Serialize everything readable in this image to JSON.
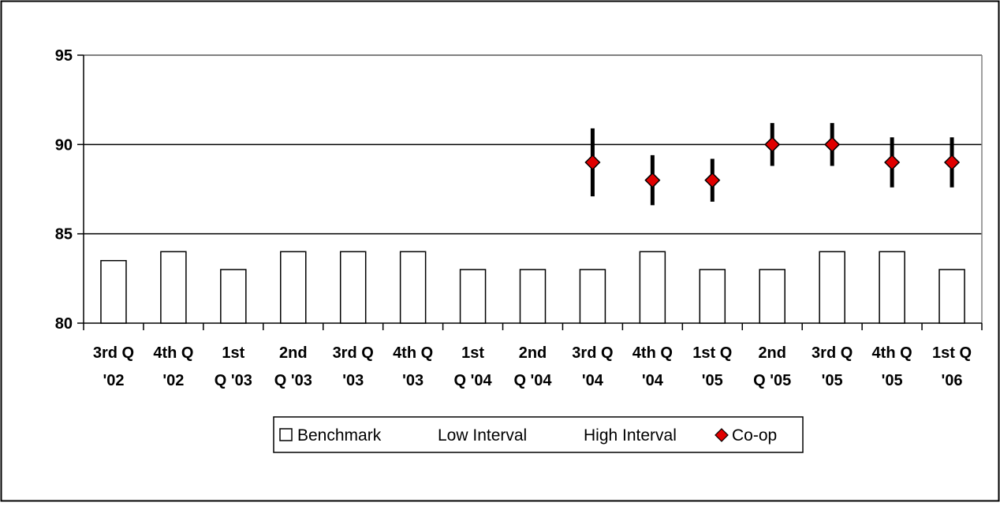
{
  "chart_data": {
    "type": "bar",
    "categories": [
      [
        "3rd Q",
        "'02"
      ],
      [
        "4th Q",
        "'02"
      ],
      [
        "1st",
        "Q '03"
      ],
      [
        "2nd",
        "Q '03"
      ],
      [
        "3rd Q",
        "'03"
      ],
      [
        "4th Q",
        "'03"
      ],
      [
        "1st",
        "Q '04"
      ],
      [
        "2nd",
        "Q '04"
      ],
      [
        "3rd Q",
        "'04"
      ],
      [
        "4th Q",
        "'04"
      ],
      [
        "1st Q",
        "'05"
      ],
      [
        "2nd",
        "Q '05"
      ],
      [
        "3rd Q",
        "'05"
      ],
      [
        "4th Q",
        "'05"
      ],
      [
        "1st Q",
        "'06"
      ]
    ],
    "series": [
      {
        "name": "Benchmark",
        "kind": "bar",
        "values": [
          83.5,
          84,
          83,
          84,
          84,
          84,
          83,
          83,
          83,
          84,
          83,
          83,
          84,
          84,
          83
        ]
      },
      {
        "name": "Low Interval",
        "kind": "error-low",
        "values": [
          null,
          null,
          null,
          null,
          null,
          null,
          null,
          null,
          87.1,
          86.6,
          86.8,
          88.8,
          88.8,
          87.6,
          87.6
        ]
      },
      {
        "name": "High Interval",
        "kind": "error-high",
        "values": [
          null,
          null,
          null,
          null,
          null,
          null,
          null,
          null,
          90.9,
          89.4,
          89.2,
          91.2,
          91.2,
          90.4,
          90.4
        ]
      },
      {
        "name": "Co-op",
        "kind": "marker",
        "values": [
          null,
          null,
          null,
          null,
          null,
          null,
          null,
          null,
          89,
          88,
          88,
          90,
          90,
          89,
          89
        ]
      }
    ],
    "ylim": [
      80,
      95
    ],
    "yticks": [
      "80",
      "85",
      "90",
      "95"
    ],
    "grid": true,
    "legend_position": "bottom",
    "colors": {
      "bar_fill": "#ffffff",
      "bar_stroke": "#000000",
      "marker_fill": "#e00000",
      "interval": "#000000",
      "plot_border": "#808080"
    }
  }
}
